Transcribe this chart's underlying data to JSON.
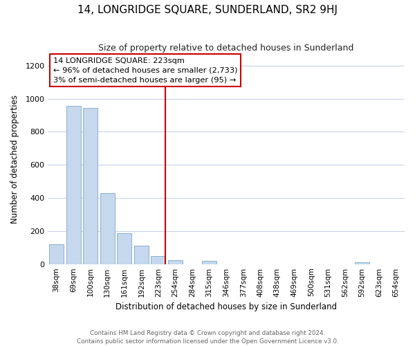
{
  "title": "14, LONGRIDGE SQUARE, SUNDERLAND, SR2 9HJ",
  "subtitle": "Size of property relative to detached houses in Sunderland",
  "xlabel": "Distribution of detached houses by size in Sunderland",
  "ylabel": "Number of detached properties",
  "bar_labels": [
    "38sqm",
    "69sqm",
    "100sqm",
    "130sqm",
    "161sqm",
    "192sqm",
    "223sqm",
    "254sqm",
    "284sqm",
    "315sqm",
    "346sqm",
    "377sqm",
    "408sqm",
    "438sqm",
    "469sqm",
    "500sqm",
    "531sqm",
    "562sqm",
    "592sqm",
    "623sqm",
    "654sqm"
  ],
  "bar_values": [
    120,
    955,
    945,
    430,
    185,
    113,
    48,
    22,
    0,
    18,
    0,
    0,
    0,
    0,
    0,
    0,
    0,
    0,
    13,
    0,
    0
  ],
  "bar_color": "#c5d8ed",
  "bar_edge_color": "#8ab0d0",
  "highlight_index": 6,
  "highlight_line_color": "#cc0000",
  "ylim": [
    0,
    1270
  ],
  "yticks": [
    0,
    200,
    400,
    600,
    800,
    1000,
    1200
  ],
  "annotation_title": "14 LONGRIDGE SQUARE: 223sqm",
  "annotation_line1": "← 96% of detached houses are smaller (2,733)",
  "annotation_line2": "3% of semi-detached houses are larger (95) →",
  "annotation_box_color": "#ffffff",
  "annotation_box_edge": "#cc0000",
  "footer_line1": "Contains HM Land Registry data © Crown copyright and database right 2024.",
  "footer_line2": "Contains public sector information licensed under the Open Government Licence v3.0.",
  "background_color": "#ffffff",
  "grid_color": "#c8d4e4"
}
